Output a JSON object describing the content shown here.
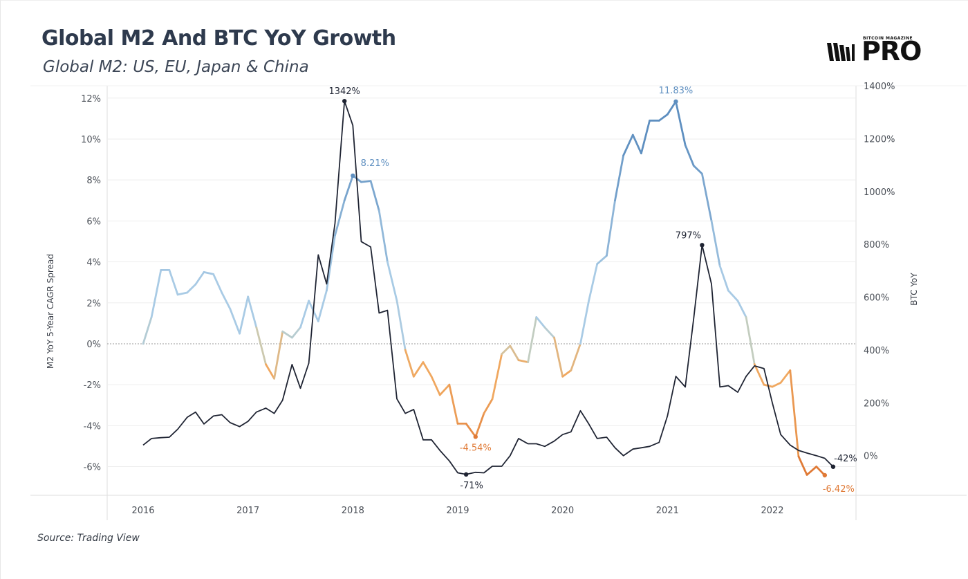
{
  "title": "Global M2 And BTC YoY Growth",
  "subtitle": "Global M2: US, EU, Japan & China",
  "source": "Source: Trading View",
  "logo": {
    "small_text": "BITCOIN MAGAZINE",
    "big_text": "PRO"
  },
  "colors": {
    "m2_positive": "#5e8fc0",
    "m2_positive_light": "#a9cbe5",
    "m2_negative": "#f0a860",
    "m2_negative_dark": "#e07a36",
    "btc": "#1f2433",
    "grid": "#eeeeee",
    "zero_line": "#999999"
  },
  "chart_data": {
    "type": "line",
    "title": "Global M2 And BTC YoY Growth",
    "subtitle": "Global M2: US, EU, Japan & China",
    "x_ticks": [
      "2016",
      "2017",
      "2018",
      "2019",
      "2020",
      "2021",
      "2022"
    ],
    "x_tick_values": [
      2016,
      2017,
      2018,
      2019,
      2020,
      2021,
      2022
    ],
    "y_left": {
      "label": "M2 YoY 5-Year CAGR Spread",
      "ticks": [
        "12%",
        "10%",
        "8%",
        "6%",
        "4%",
        "2%",
        "0%",
        "-2%",
        "-4%",
        "-6%"
      ],
      "tick_values": [
        12,
        10,
        8,
        6,
        4,
        2,
        0,
        -2,
        -4,
        -6
      ],
      "range": [
        -7.4,
        12.6
      ]
    },
    "y_right": {
      "label": "BTC YoY",
      "ticks": [
        "1400%",
        "1200%",
        "1000%",
        "800%",
        "600%",
        "400%",
        "200%",
        "0%"
      ],
      "tick_values": [
        1400,
        1200,
        1000,
        800,
        600,
        400,
        200,
        0
      ],
      "range": [
        -150,
        1400
      ]
    },
    "grid": true,
    "legend": "none",
    "series": [
      {
        "axis": "left",
        "style": "gradient by sign",
        "points": [
          [
            2016.0,
            0.0
          ],
          [
            2016.08,
            1.3
          ],
          [
            2016.17,
            3.6
          ],
          [
            2016.25,
            3.6
          ],
          [
            2016.33,
            2.4
          ],
          [
            2016.42,
            2.5
          ],
          [
            2016.5,
            2.9
          ],
          [
            2016.58,
            3.5
          ],
          [
            2016.67,
            3.4
          ],
          [
            2016.75,
            2.5
          ],
          [
            2016.83,
            1.7
          ],
          [
            2016.92,
            0.5
          ],
          [
            2017.0,
            2.3
          ],
          [
            2017.08,
            0.8
          ],
          [
            2017.17,
            -1.0
          ],
          [
            2017.25,
            -1.7
          ],
          [
            2017.33,
            0.6
          ],
          [
            2017.42,
            0.3
          ],
          [
            2017.5,
            0.8
          ],
          [
            2017.58,
            2.1
          ],
          [
            2017.67,
            1.1
          ],
          [
            2017.75,
            2.6
          ],
          [
            2017.83,
            5.3
          ],
          [
            2017.92,
            7.0
          ],
          [
            2018.0,
            8.21
          ],
          [
            2018.08,
            7.9
          ],
          [
            2018.17,
            7.95
          ],
          [
            2018.25,
            6.5
          ],
          [
            2018.33,
            4.0
          ],
          [
            2018.42,
            2.1
          ],
          [
            2018.5,
            -0.3
          ],
          [
            2018.58,
            -1.6
          ],
          [
            2018.67,
            -0.9
          ],
          [
            2018.75,
            -1.6
          ],
          [
            2018.83,
            -2.5
          ],
          [
            2018.92,
            -2.0
          ],
          [
            2019.0,
            -3.9
          ],
          [
            2019.08,
            -3.9
          ],
          [
            2019.17,
            -4.54
          ],
          [
            2019.25,
            -3.4
          ],
          [
            2019.33,
            -2.7
          ],
          [
            2019.42,
            -0.5
          ],
          [
            2019.5,
            -0.1
          ],
          [
            2019.58,
            -0.8
          ],
          [
            2019.67,
            -0.9
          ],
          [
            2019.75,
            1.3
          ],
          [
            2019.83,
            0.8
          ],
          [
            2019.92,
            0.3
          ],
          [
            2020.0,
            -1.6
          ],
          [
            2020.08,
            -1.3
          ],
          [
            2020.17,
            0.0
          ],
          [
            2020.25,
            2.1
          ],
          [
            2020.33,
            3.9
          ],
          [
            2020.42,
            4.3
          ],
          [
            2020.5,
            7.0
          ],
          [
            2020.58,
            9.2
          ],
          [
            2020.67,
            10.2
          ],
          [
            2020.75,
            9.3
          ],
          [
            2020.83,
            10.9
          ],
          [
            2020.92,
            10.9
          ],
          [
            2021.0,
            11.2
          ],
          [
            2021.08,
            11.83
          ],
          [
            2021.17,
            9.7
          ],
          [
            2021.25,
            8.7
          ],
          [
            2021.33,
            8.3
          ],
          [
            2021.42,
            6.0
          ],
          [
            2021.5,
            3.8
          ],
          [
            2021.58,
            2.6
          ],
          [
            2021.67,
            2.1
          ],
          [
            2021.75,
            1.3
          ],
          [
            2021.83,
            -1.0
          ],
          [
            2021.92,
            -2.0
          ],
          [
            2022.0,
            -2.1
          ],
          [
            2022.08,
            -1.9
          ],
          [
            2022.17,
            -1.3
          ],
          [
            2022.25,
            -5.5
          ],
          [
            2022.33,
            -6.4
          ],
          [
            2022.42,
            -6.0
          ],
          [
            2022.5,
            -6.42
          ]
        ],
        "labels": [
          {
            "x": 2018.0,
            "y": 8.21,
            "text": "8.21%"
          },
          {
            "x": 2019.17,
            "y": -4.54,
            "text": "-4.54%"
          },
          {
            "x": 2021.08,
            "y": 11.83,
            "text": "11.83%"
          },
          {
            "x": 2022.5,
            "y": -6.42,
            "text": "-6.42%"
          }
        ]
      },
      {
        "axis": "right",
        "style": "solid",
        "points": [
          [
            2016.0,
            40
          ],
          [
            2016.08,
            65
          ],
          [
            2016.17,
            68
          ],
          [
            2016.25,
            70
          ],
          [
            2016.33,
            100
          ],
          [
            2016.42,
            145
          ],
          [
            2016.5,
            165
          ],
          [
            2016.58,
            120
          ],
          [
            2016.67,
            150
          ],
          [
            2016.75,
            155
          ],
          [
            2016.83,
            125
          ],
          [
            2016.92,
            110
          ],
          [
            2017.0,
            130
          ],
          [
            2017.08,
            165
          ],
          [
            2017.17,
            180
          ],
          [
            2017.25,
            160
          ],
          [
            2017.33,
            210
          ],
          [
            2017.42,
            345
          ],
          [
            2017.5,
            255
          ],
          [
            2017.58,
            350
          ],
          [
            2017.67,
            760
          ],
          [
            2017.75,
            650
          ],
          [
            2017.83,
            880
          ],
          [
            2017.92,
            1342
          ],
          [
            2018.0,
            1250
          ],
          [
            2018.08,
            810
          ],
          [
            2018.17,
            790
          ],
          [
            2018.25,
            540
          ],
          [
            2018.33,
            550
          ],
          [
            2018.42,
            215
          ],
          [
            2018.5,
            160
          ],
          [
            2018.58,
            175
          ],
          [
            2018.67,
            60
          ],
          [
            2018.75,
            60
          ],
          [
            2018.83,
            20
          ],
          [
            2018.92,
            -20
          ],
          [
            2019.0,
            -65
          ],
          [
            2019.08,
            -71
          ],
          [
            2019.17,
            -63
          ],
          [
            2019.25,
            -65
          ],
          [
            2019.33,
            -40
          ],
          [
            2019.42,
            -40
          ],
          [
            2019.5,
            0
          ],
          [
            2019.58,
            65
          ],
          [
            2019.67,
            45
          ],
          [
            2019.75,
            45
          ],
          [
            2019.83,
            35
          ],
          [
            2019.92,
            55
          ],
          [
            2020.0,
            80
          ],
          [
            2020.08,
            90
          ],
          [
            2020.17,
            170
          ],
          [
            2020.25,
            120
          ],
          [
            2020.33,
            65
          ],
          [
            2020.42,
            70
          ],
          [
            2020.5,
            30
          ],
          [
            2020.58,
            0
          ],
          [
            2020.67,
            25
          ],
          [
            2020.75,
            30
          ],
          [
            2020.83,
            35
          ],
          [
            2020.92,
            50
          ],
          [
            2021.0,
            150
          ],
          [
            2021.08,
            300
          ],
          [
            2021.17,
            260
          ],
          [
            2021.25,
            520
          ],
          [
            2021.33,
            797
          ],
          [
            2021.42,
            650
          ],
          [
            2021.5,
            260
          ],
          [
            2021.58,
            265
          ],
          [
            2021.67,
            240
          ],
          [
            2021.75,
            300
          ],
          [
            2021.83,
            340
          ],
          [
            2021.92,
            330
          ],
          [
            2022.0,
            200
          ],
          [
            2022.08,
            80
          ],
          [
            2022.17,
            40
          ],
          [
            2022.25,
            20
          ],
          [
            2022.33,
            10
          ],
          [
            2022.42,
            0
          ],
          [
            2022.5,
            -10
          ],
          [
            2022.58,
            -42
          ]
        ],
        "labels": [
          {
            "x": 2017.92,
            "y": 1342,
            "text": "1342%"
          },
          {
            "x": 2019.08,
            "y": -71,
            "text": "-71%"
          },
          {
            "x": 2021.33,
            "y": 797,
            "text": "797%"
          },
          {
            "x": 2022.58,
            "y": -42,
            "text": "-42%"
          }
        ]
      }
    ]
  }
}
